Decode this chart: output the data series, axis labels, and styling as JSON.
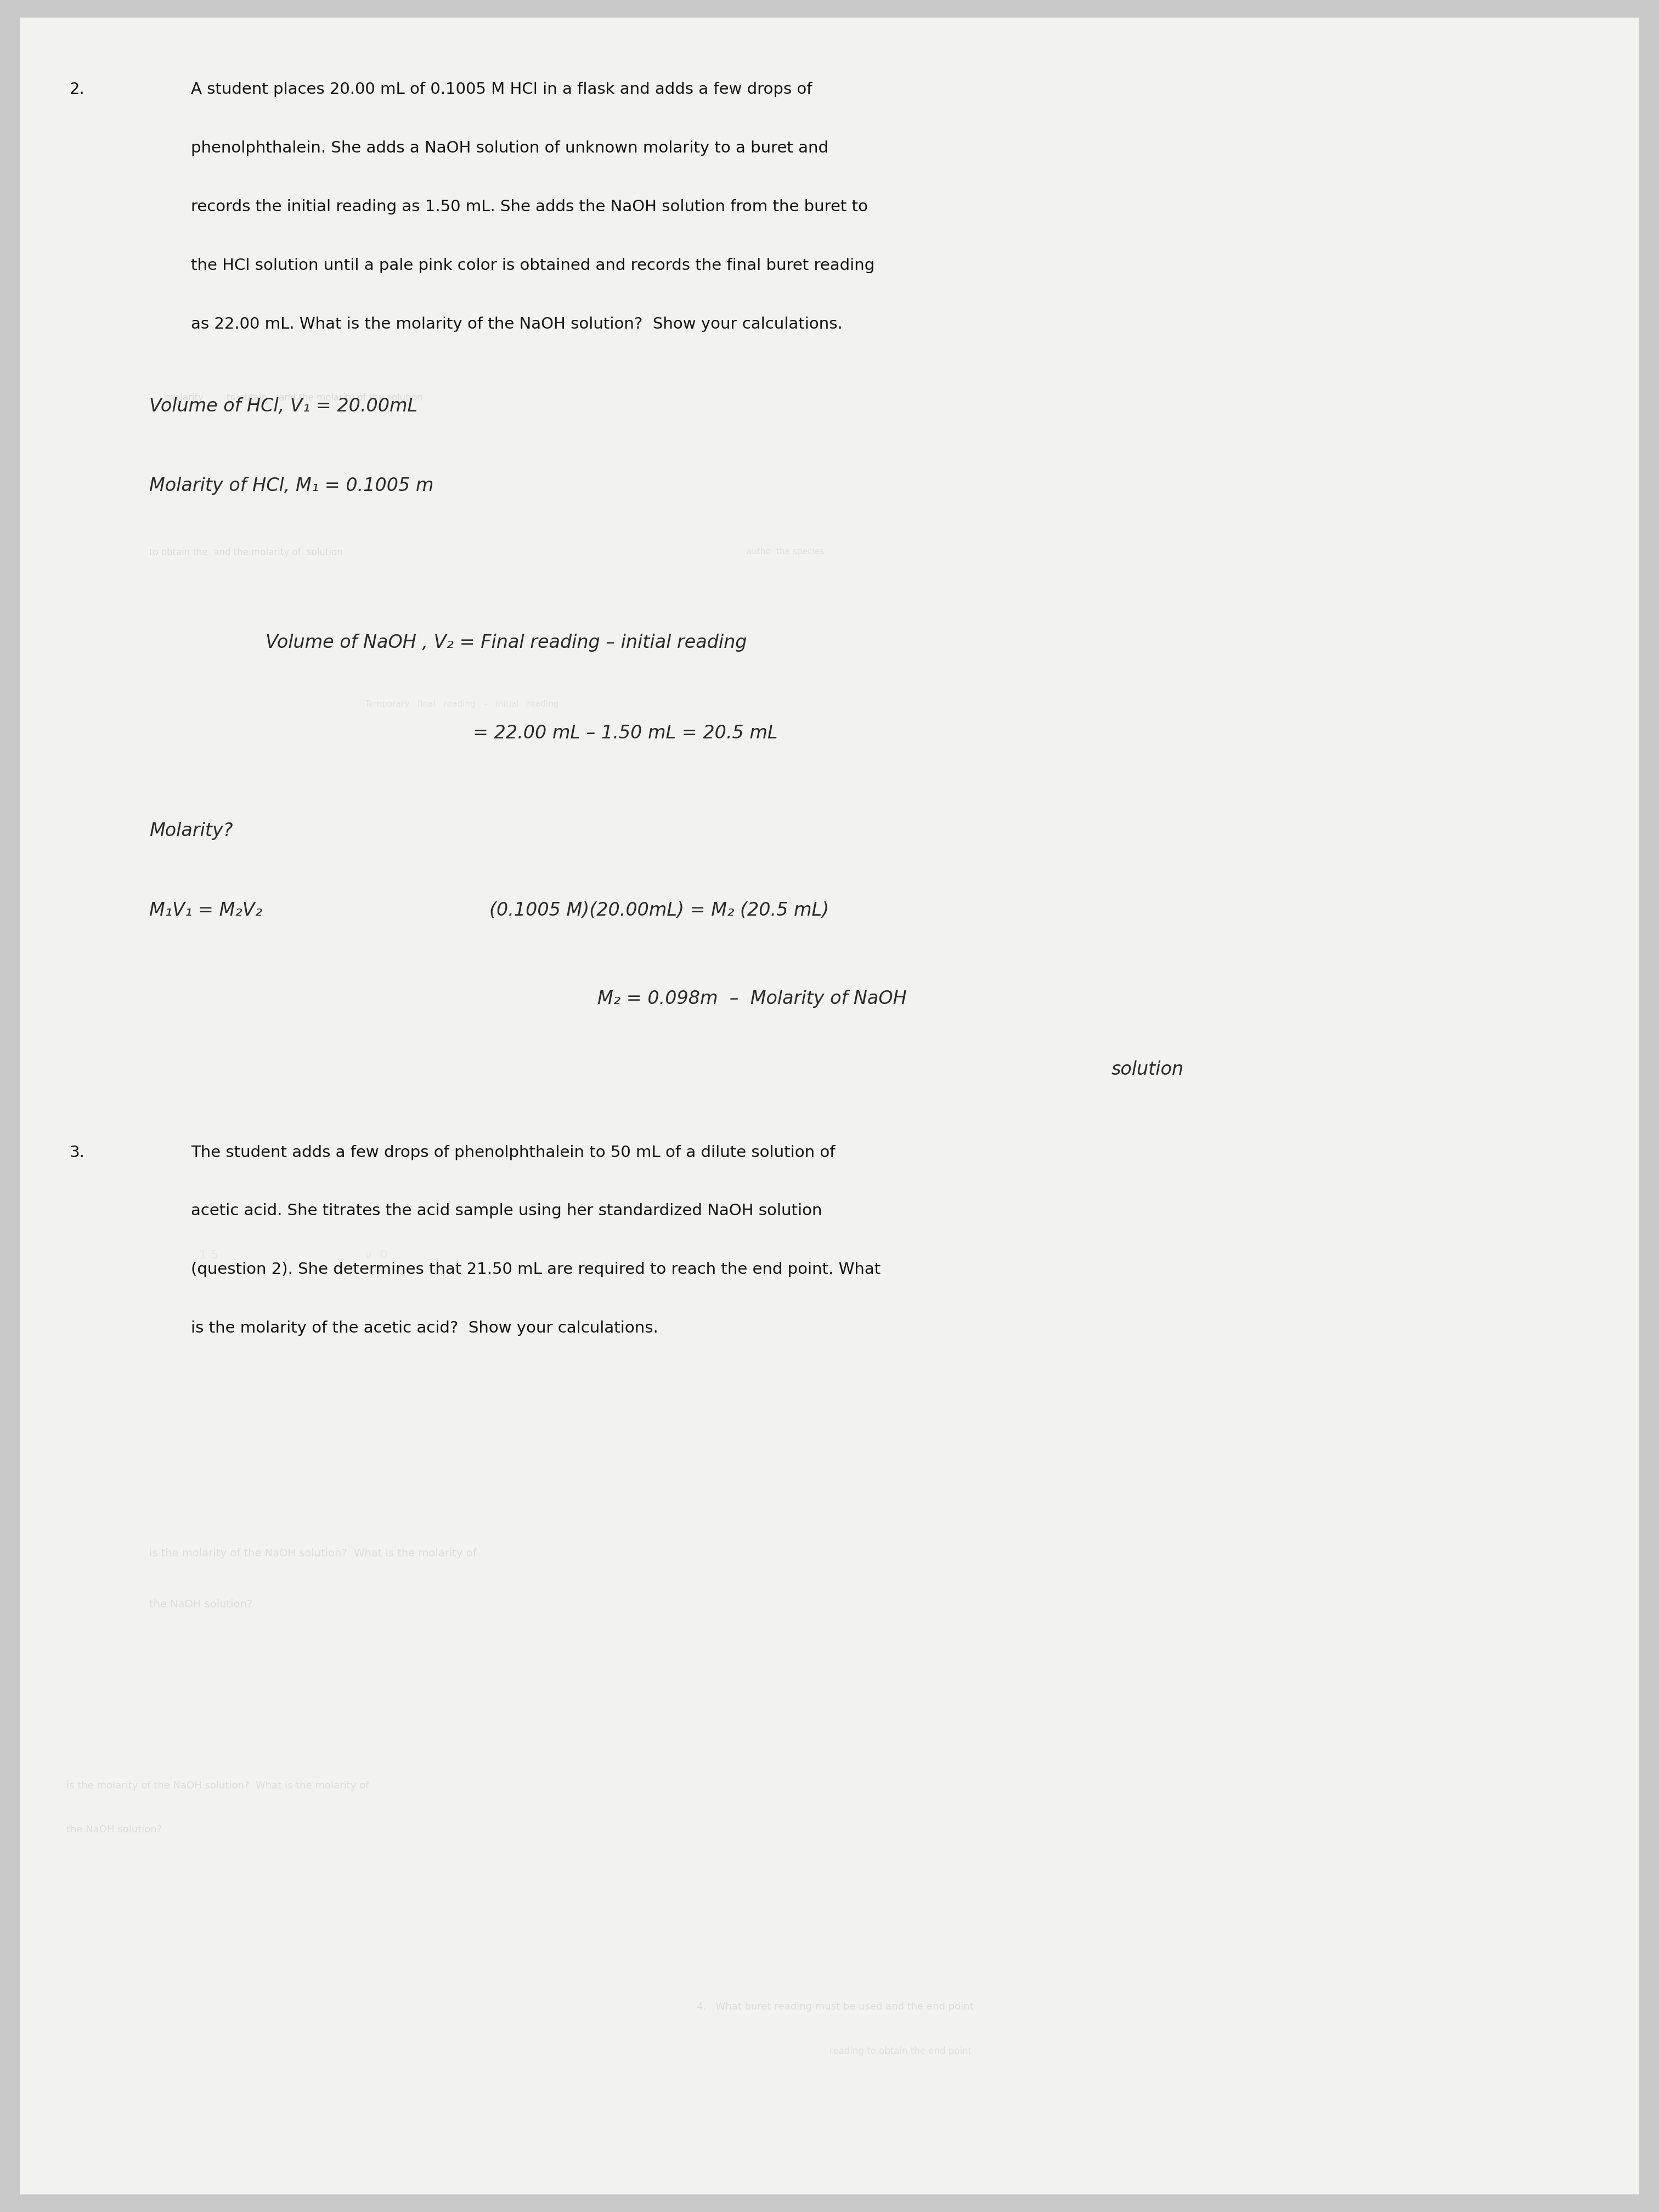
{
  "bg_color": "#c8c8c8",
  "paper_color": "#f2f2ee",
  "fig_width": 30.24,
  "fig_height": 40.32,
  "question2_number": "2.",
  "question2_line1": "A student places 20.00 mL of 0.1005 M HCl in a flask and adds a few drops of",
  "question2_line2": "phenolphthalein. She adds a NaOH solution of unknown molarity to a buret and",
  "question2_line3": "records the initial reading as 1.50 mL. She adds the NaOH solution from the buret to",
  "question2_line4": "the HCl solution until a pale pink color is obtained and records the final buret reading",
  "question2_line5": "as 22.00 mL. What is the molarity of the NaOH solution?  Show your calculations.",
  "hw1": "Volume of HCl, V₁ = 20.00mL",
  "hw2": "Molarity of HCl, M₁ = 0.1005 m",
  "hw3": "Volume of NaOH , V₂ = Final reading – initial reading",
  "hw4": "= 22.00 mL – 1.50 mL = 20.5 mL",
  "hw5": "Molarity?",
  "hw6a": "M₁V₁ = M₂V₂",
  "hw6b": "(0.1005 M)(20.00mL) = M₂ (20.5 mL)",
  "hw7": "M₂ = 0.098m  –  Molarity of NaOH",
  "hw8": "solution",
  "question3_number": "3.",
  "question3_line1": "The student adds a few drops of phenolphthalein to 50 mL of a dilute solution of",
  "question3_line2": "acetic acid. She titrates the acid sample using her standardized NaOH solution",
  "question3_line3": "(question 2). She determines that 21.50 mL are required to reach the end point. What",
  "question3_line4": "is the molarity of the acetic acid?  Show your calculations.",
  "font_size_q": 21,
  "font_size_hw": 24,
  "text_color": "#111111",
  "hw_color": "#2a2a2a",
  "faded_color": "#888888"
}
